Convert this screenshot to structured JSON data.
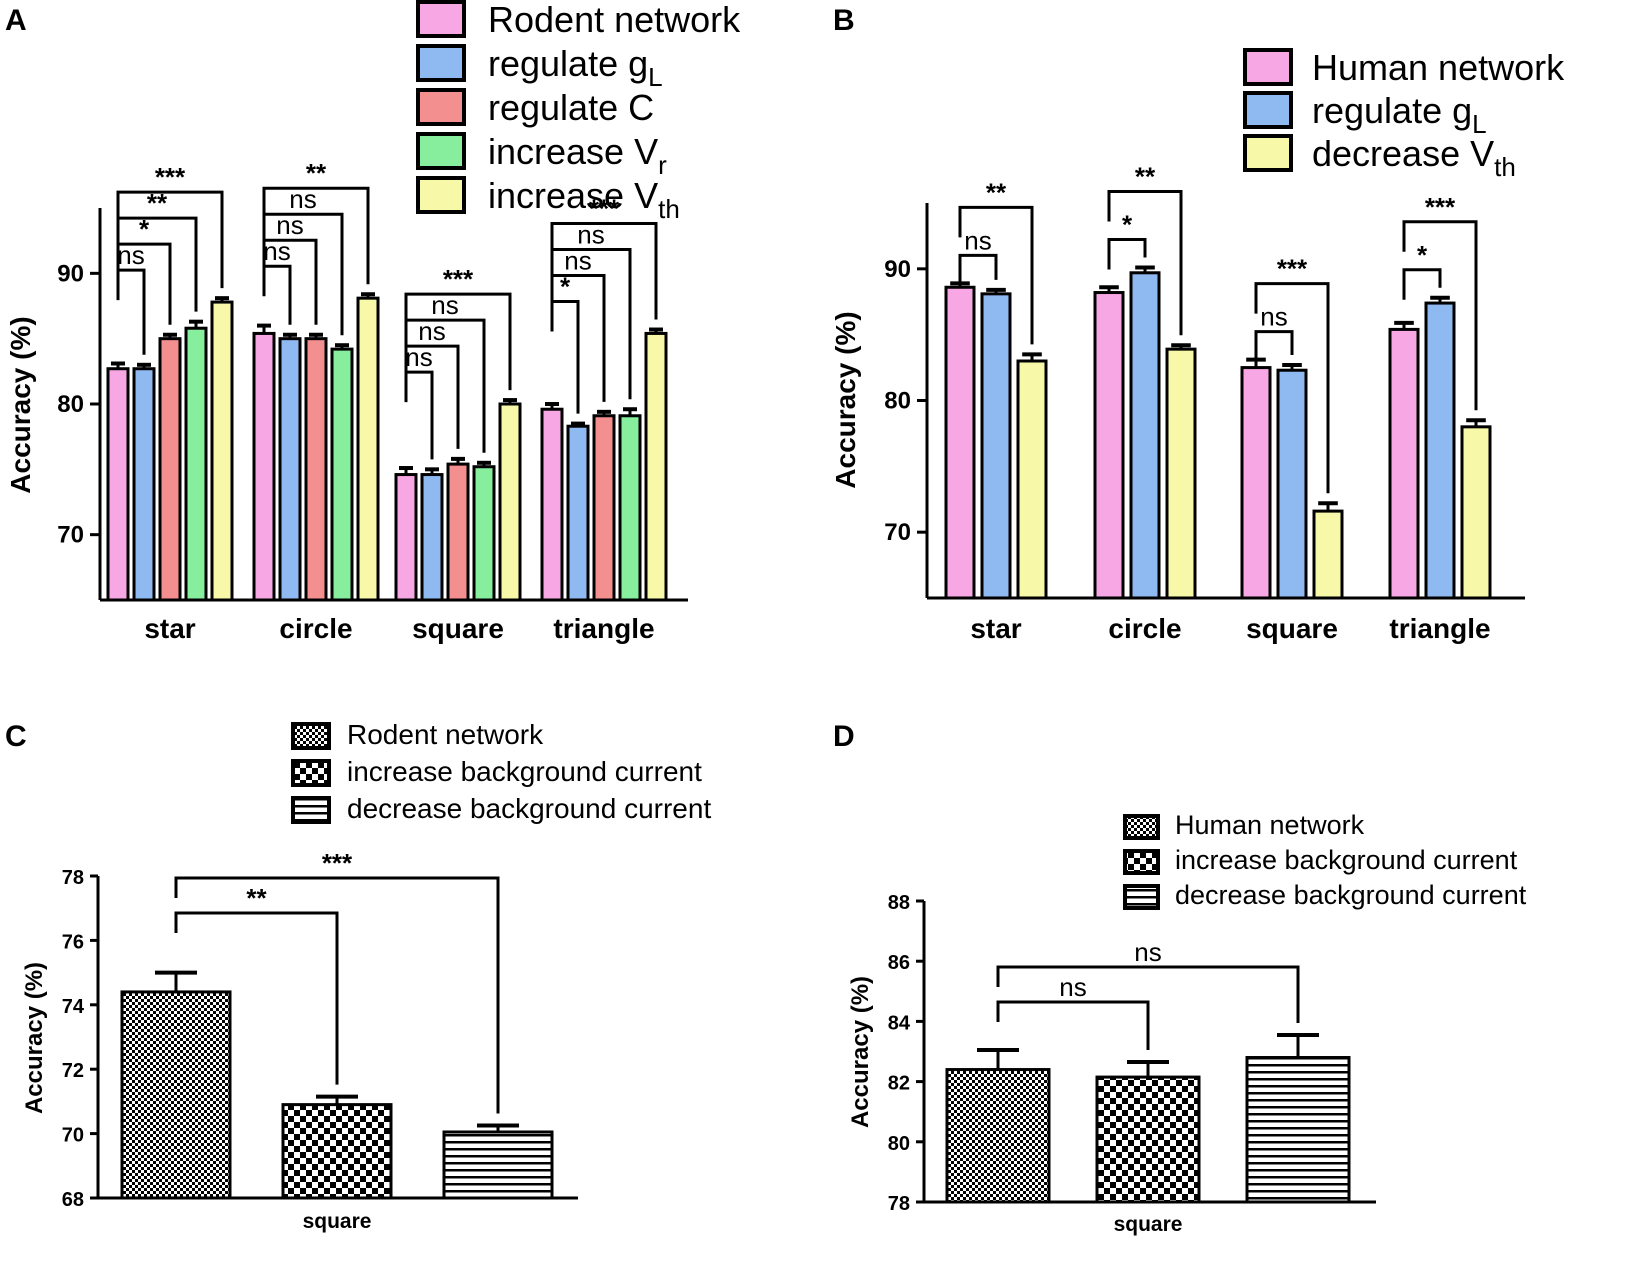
{
  "chart_data": [
    {
      "panel": "A",
      "type": "bar",
      "ylabel": "Accuracy (%)",
      "ylim": [
        65,
        95
      ],
      "yticks": [
        70,
        80,
        90
      ],
      "categories": [
        "star",
        "circle",
        "square",
        "triangle"
      ],
      "colors": [
        "#f6a7e4",
        "#8fb9f1",
        "#f3908f",
        "#86ee9c",
        "#f7f9a8"
      ],
      "legend": {
        "placement": "top",
        "entries": [
          {
            "text": "Rodent network"
          },
          {
            "text": "regulate g",
            "sub": "L"
          },
          {
            "text": "regulate C"
          },
          {
            "text": "increase V",
            "sub": "r"
          },
          {
            "text": "increase V",
            "sub": "th"
          }
        ]
      },
      "series": [
        {
          "name": "Rodent network",
          "values": [
            82.7,
            85.4,
            74.6,
            79.6
          ],
          "errors": [
            0.4,
            0.6,
            0.5,
            0.4
          ]
        },
        {
          "name": "regulate gL",
          "values": [
            82.7,
            85.0,
            74.6,
            78.3
          ],
          "errors": [
            0.3,
            0.3,
            0.4,
            0.2
          ]
        },
        {
          "name": "regulate C",
          "values": [
            85.0,
            85.0,
            75.4,
            79.1
          ],
          "errors": [
            0.3,
            0.3,
            0.4,
            0.3
          ]
        },
        {
          "name": "increase Vr",
          "values": [
            85.8,
            84.2,
            75.2,
            79.1
          ],
          "errors": [
            0.5,
            0.3,
            0.3,
            0.5
          ]
        },
        {
          "name": "increase Vth",
          "values": [
            87.8,
            88.1,
            80.0,
            85.4
          ],
          "errors": [
            0.3,
            0.3,
            0.3,
            0.3
          ]
        }
      ],
      "comparisons": [
        {
          "cat": 0,
          "to": 1,
          "label": "ns",
          "level": 1
        },
        {
          "cat": 0,
          "to": 2,
          "label": "*",
          "level": 2
        },
        {
          "cat": 0,
          "to": 3,
          "label": "**",
          "level": 3
        },
        {
          "cat": 0,
          "to": 4,
          "label": "***",
          "level": 4
        },
        {
          "cat": 1,
          "to": 1,
          "label": "ns",
          "level": 1
        },
        {
          "cat": 1,
          "to": 2,
          "label": "ns",
          "level": 2
        },
        {
          "cat": 1,
          "to": 3,
          "label": "ns",
          "level": 3
        },
        {
          "cat": 1,
          "to": 4,
          "label": "**",
          "level": 4
        },
        {
          "cat": 2,
          "to": 1,
          "label": "ns",
          "level": 1
        },
        {
          "cat": 2,
          "to": 2,
          "label": "ns",
          "level": 2
        },
        {
          "cat": 2,
          "to": 3,
          "label": "ns",
          "level": 3
        },
        {
          "cat": 2,
          "to": 4,
          "label": "***",
          "level": 4
        },
        {
          "cat": 3,
          "to": 1,
          "label": "*",
          "level": 1
        },
        {
          "cat": 3,
          "to": 2,
          "label": "ns",
          "level": 2
        },
        {
          "cat": 3,
          "to": 3,
          "label": "ns",
          "level": 3
        },
        {
          "cat": 3,
          "to": 4,
          "label": "***",
          "level": 4
        }
      ]
    },
    {
      "panel": "B",
      "type": "bar",
      "ylabel": "Accuracy (%)",
      "ylim": [
        65,
        95
      ],
      "yticks": [
        70,
        80,
        90
      ],
      "categories": [
        "star",
        "circle",
        "square",
        "triangle"
      ],
      "colors": [
        "#f6a7e4",
        "#8fb9f1",
        "#f7f9a8"
      ],
      "legend": {
        "placement": "top-right",
        "entries": [
          {
            "text": "Human network"
          },
          {
            "text": "regulate g",
            "sub": "L"
          },
          {
            "text": "decrease V",
            "sub": "th"
          }
        ]
      },
      "series": [
        {
          "name": "Human network",
          "values": [
            88.6,
            88.2,
            82.5,
            85.4
          ],
          "errors": [
            0.3,
            0.4,
            0.6,
            0.5
          ]
        },
        {
          "name": "regulate gL",
          "values": [
            88.1,
            89.7,
            82.3,
            87.4
          ],
          "errors": [
            0.3,
            0.4,
            0.4,
            0.4
          ]
        },
        {
          "name": "decrease Vth",
          "values": [
            83.0,
            83.9,
            71.6,
            78.0
          ],
          "errors": [
            0.5,
            0.3,
            0.6,
            0.5
          ]
        }
      ],
      "comparisons": [
        {
          "cat": 0,
          "to": 1,
          "label": "ns",
          "level": 1
        },
        {
          "cat": 0,
          "to": 2,
          "label": "**",
          "level": 2
        },
        {
          "cat": 1,
          "to": 1,
          "label": "*",
          "level": 1
        },
        {
          "cat": 1,
          "to": 2,
          "label": "**",
          "level": 2
        },
        {
          "cat": 2,
          "to": 1,
          "label": "ns",
          "level": 1
        },
        {
          "cat": 2,
          "to": 2,
          "label": "***",
          "level": 2
        },
        {
          "cat": 3,
          "to": 1,
          "label": "*",
          "level": 1
        },
        {
          "cat": 3,
          "to": 2,
          "label": "***",
          "level": 2
        }
      ]
    },
    {
      "panel": "C",
      "type": "bar",
      "ylabel": "Accuracy (%)",
      "ylim": [
        68,
        78
      ],
      "yticks": [
        68,
        70,
        72,
        74,
        76,
        78
      ],
      "categories": [
        "square"
      ],
      "legend": {
        "placement": "top",
        "entries": [
          {
            "text": "Rodent network",
            "pattern": "fine"
          },
          {
            "text": "increase background current",
            "pattern": "checker"
          },
          {
            "text": "decrease background current",
            "pattern": "hlines"
          }
        ]
      },
      "series": [
        {
          "name": "Rodent network",
          "values": [
            74.4
          ],
          "errors": [
            0.6
          ],
          "pattern": "fine"
        },
        {
          "name": "increase background current",
          "values": [
            70.9
          ],
          "errors": [
            0.25
          ],
          "pattern": "checker"
        },
        {
          "name": "decrease background current",
          "values": [
            70.05
          ],
          "errors": [
            0.2
          ],
          "pattern": "hlines"
        }
      ],
      "comparisons": [
        {
          "cat": 0,
          "to": 1,
          "label": "**",
          "level": 1
        },
        {
          "cat": 0,
          "to": 2,
          "label": "***",
          "level": 2
        }
      ]
    },
    {
      "panel": "D",
      "type": "bar",
      "ylabel": "Accuracy (%)",
      "ylim": [
        78,
        88
      ],
      "yticks": [
        78,
        80,
        82,
        84,
        86,
        88
      ],
      "categories": [
        "square"
      ],
      "legend": {
        "placement": "top-right",
        "entries": [
          {
            "text": "Human network",
            "pattern": "fine"
          },
          {
            "text": "increase background current",
            "pattern": "checker"
          },
          {
            "text": "decrease background current",
            "pattern": "hlines"
          }
        ]
      },
      "series": [
        {
          "name": "Human network",
          "values": [
            82.4
          ],
          "errors": [
            0.65
          ],
          "pattern": "fine"
        },
        {
          "name": "increase background current",
          "values": [
            82.15
          ],
          "errors": [
            0.5
          ],
          "pattern": "checker"
        },
        {
          "name": "decrease background current",
          "values": [
            82.8
          ],
          "errors": [
            0.75
          ],
          "pattern": "hlines"
        }
      ],
      "comparisons": [
        {
          "cat": 0,
          "to": 1,
          "label": "ns",
          "level": 1
        },
        {
          "cat": 0,
          "to": 2,
          "label": "ns",
          "level": 2
        }
      ]
    }
  ]
}
